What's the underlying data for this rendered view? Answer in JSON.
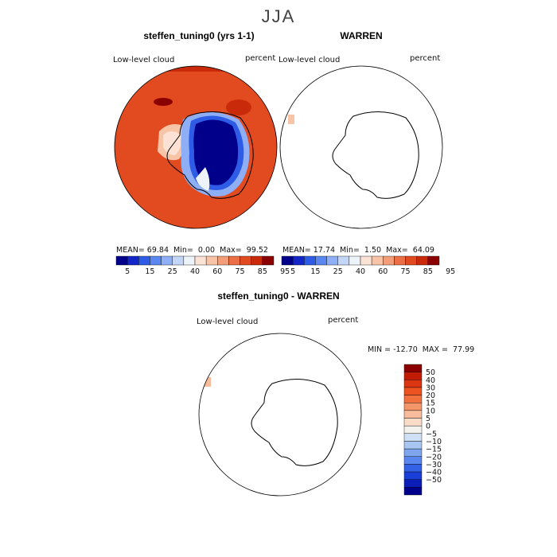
{
  "figure": {
    "season": "JJA"
  },
  "chart_data": [
    {
      "type": "heatmap",
      "title": "steffen_tuning0 (yrs 1-1)",
      "variable": "Low-level cloud",
      "units": "percent",
      "stats": {
        "mean_label": "MEAN=",
        "mean": "69.84",
        "min_label": "Min=",
        "min": "0.00",
        "max_label": "Max=",
        "max": "99.52"
      },
      "colorbar": {
        "levels": [
          "5",
          "15",
          "25",
          "40",
          "60",
          "75",
          "85",
          "95"
        ],
        "colors": [
          "#00008b",
          "#1327c9",
          "#2f5ce6",
          "#5a86f0",
          "#8eaff5",
          "#c3d6f7",
          "#eef3f7",
          "#fbe2d4",
          "#f8c4a8",
          "#f39d79",
          "#ec6e45",
          "#e24a20",
          "#c92a0a",
          "#8b0000"
        ]
      }
    },
    {
      "type": "heatmap",
      "title": "WARREN",
      "variable": "Low-level cloud",
      "units": "percent",
      "stats": {
        "mean_label": "MEAN=",
        "mean": "17.74",
        "min_label": "Min=",
        "min": "1.50",
        "max_label": "Max=",
        "max": "64.09"
      },
      "colorbar": {
        "levels": [
          "5",
          "15",
          "25",
          "40",
          "60",
          "75",
          "85",
          "95"
        ],
        "colors": [
          "#00008b",
          "#1327c9",
          "#2f5ce6",
          "#5a86f0",
          "#8eaff5",
          "#c3d6f7",
          "#eef3f7",
          "#fbe2d4",
          "#f8c4a8",
          "#f39d79",
          "#ec6e45",
          "#e24a20",
          "#c92a0a",
          "#8b0000"
        ]
      }
    },
    {
      "type": "heatmap",
      "title": "steffen_tuning0 - WARREN",
      "variable": "Low-level cloud",
      "units": "percent",
      "stats": {
        "min_label": "MIN =",
        "min": "-12.70",
        "max_label": "MAX =",
        "max": "77.99"
      },
      "colorbar": {
        "levels": [
          "50",
          "40",
          "30",
          "20",
          "15",
          "10",
          "5",
          "0",
          "−5",
          "−10",
          "−15",
          "−20",
          "−30",
          "−40",
          "−50"
        ],
        "colors": [
          "#8b0000",
          "#c21c05",
          "#dc3512",
          "#ec5320",
          "#f26f3e",
          "#f5956a",
          "#f8bb9c",
          "#fbdcc8",
          "#f4f2ee",
          "#cfe0f5",
          "#a9c6f3",
          "#7ea6ef",
          "#5a86f0",
          "#3462e6",
          "#1a3ed8",
          "#0b1fb8",
          "#00008b"
        ]
      }
    }
  ]
}
